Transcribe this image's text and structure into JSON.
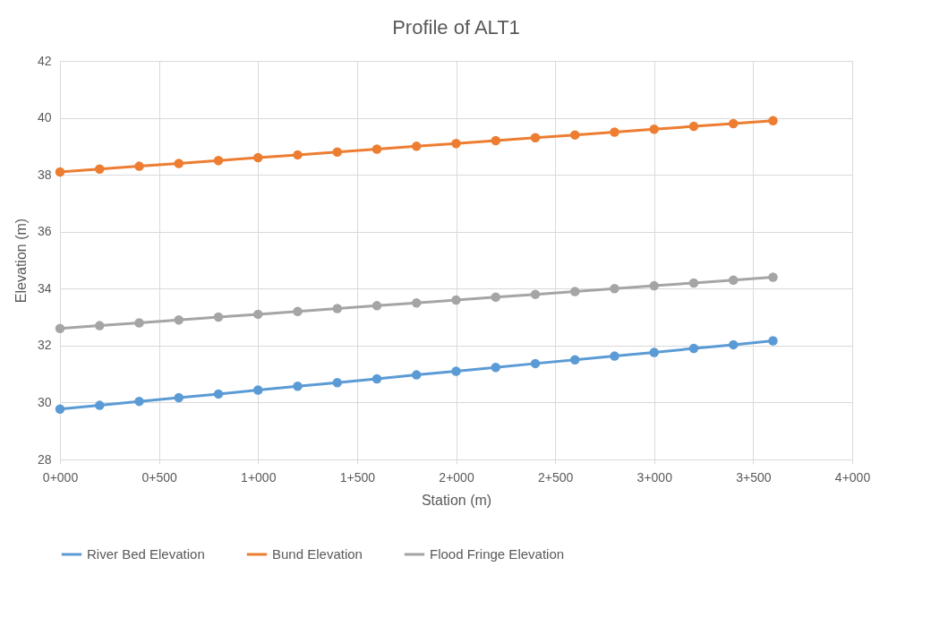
{
  "chart_data": {
    "type": "line",
    "title": "Profile of ALT1",
    "xlabel": "Station (m)",
    "ylabel": "Elevation (m)",
    "categories": [
      "0+000",
      null,
      null,
      null,
      null,
      "0+500",
      null,
      null,
      null,
      null,
      "1+000",
      null,
      null,
      null,
      null,
      "1+500",
      null,
      null,
      null,
      null,
      "2+000",
      null,
      null,
      null,
      null,
      "2+500",
      null,
      null,
      null,
      null,
      "3+000",
      null,
      null,
      null,
      null,
      "3+500",
      null,
      null,
      null,
      null,
      "4+000"
    ],
    "series": [
      {
        "name": "River Bed Elevation",
        "color": "#5b9bd5",
        "values": [
          29.77,
          null,
          29.9,
          null,
          30.04,
          null,
          30.17,
          null,
          30.3,
          null,
          30.44,
          null,
          30.57,
          null,
          30.7,
          null,
          30.83,
          null,
          30.97,
          null,
          31.1,
          null,
          31.23,
          null,
          31.37,
          null,
          31.5,
          null,
          31.63,
          null,
          31.76,
          null,
          31.9,
          null,
          32.03,
          null,
          32.17,
          null,
          null,
          null,
          null
        ]
      },
      {
        "name": "Bund Elevation",
        "color": "#ed7d31",
        "values": [
          38.1,
          null,
          38.2,
          null,
          38.3,
          null,
          38.4,
          null,
          38.5,
          null,
          38.6,
          null,
          38.7,
          null,
          38.8,
          null,
          38.9,
          null,
          39.0,
          null,
          39.1,
          null,
          39.2,
          null,
          39.3,
          null,
          39.4,
          null,
          39.5,
          null,
          39.6,
          null,
          39.7,
          null,
          39.8,
          null,
          39.9,
          null,
          null,
          null,
          null
        ]
      },
      {
        "name": "Flood Fringe Elevation",
        "color": "#a5a5a5",
        "values": [
          32.6,
          null,
          32.7,
          null,
          32.8,
          null,
          32.9,
          null,
          33.0,
          null,
          33.1,
          null,
          33.2,
          null,
          33.3,
          null,
          33.4,
          null,
          33.5,
          null,
          33.6,
          null,
          33.7,
          null,
          33.8,
          null,
          33.9,
          null,
          34.0,
          null,
          34.1,
          null,
          34.2,
          null,
          34.3,
          null,
          34.4,
          null,
          null,
          null,
          null
        ]
      }
    ],
    "ylim": [
      28,
      42
    ],
    "yticks": [
      28,
      30,
      32,
      34,
      36,
      38,
      40,
      42
    ],
    "grid": true,
    "legend": "bottom",
    "marker": "circle",
    "line_style": "solid"
  }
}
